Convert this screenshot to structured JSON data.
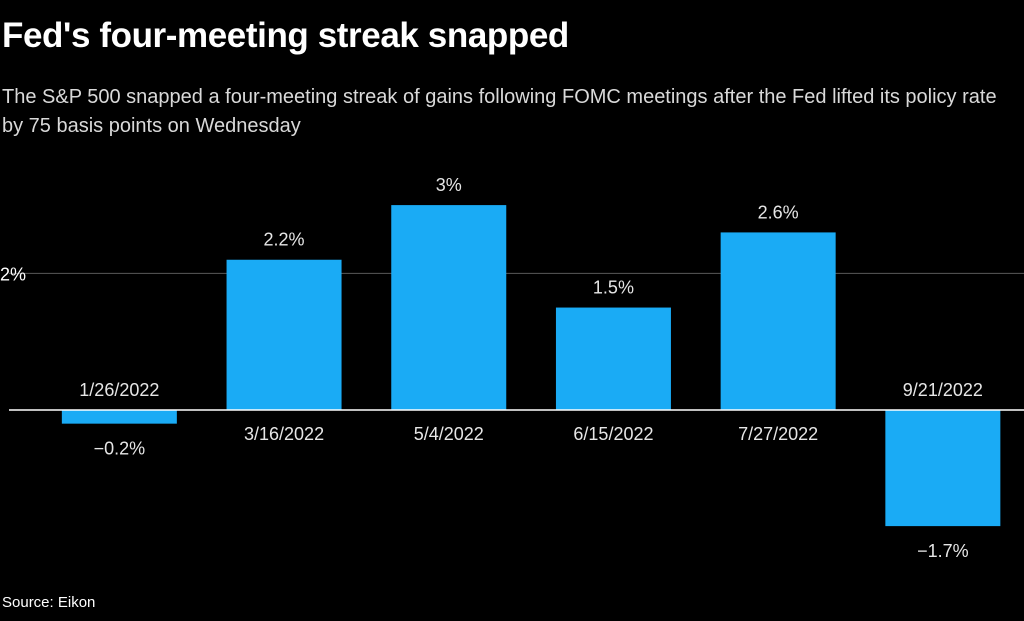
{
  "title": "Fed's four-meeting streak snapped",
  "subtitle": "The S&P 500 snapped a four-meeting streak of gains following FOMC meetings after the Fed lifted its policy rate by 75 basis points on Wednesday",
  "source": "Source: Eikon",
  "colors": {
    "background": "#000000",
    "bar": "#1aabf5",
    "gridline": "#5a5a5a",
    "zero_line": "#ffffff",
    "text": "#ffffff",
    "label_text": "#e6e6e6"
  },
  "chart_data": {
    "type": "bar",
    "title": "Fed's four-meeting streak snapped",
    "categories": [
      "1/26/2022",
      "3/16/2022",
      "5/4/2022",
      "6/15/2022",
      "7/27/2022",
      "9/21/2022"
    ],
    "values": [
      -0.2,
      2.2,
      3.0,
      1.5,
      2.6,
      -1.7
    ],
    "value_labels": [
      "−0.2%",
      "2.2%",
      "3%",
      "1.5%",
      "2.6%",
      "−1.7%"
    ],
    "yticks": [
      {
        "value": 2,
        "label": "2%"
      }
    ],
    "ylim": [
      -2.2,
      3.6
    ],
    "xlabel": "",
    "ylabel": "",
    "grid": true,
    "legend": "none"
  }
}
